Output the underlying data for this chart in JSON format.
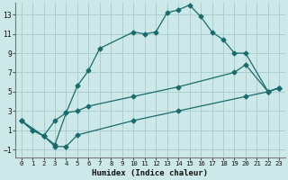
{
  "xlabel": "Humidex (Indice chaleur)",
  "xlim": [
    -0.5,
    23.5
  ],
  "ylim": [
    -1.8,
    14.2
  ],
  "yticks": [
    -1,
    1,
    3,
    5,
    7,
    9,
    11,
    13
  ],
  "xticks": [
    0,
    1,
    2,
    3,
    4,
    5,
    6,
    7,
    8,
    9,
    10,
    11,
    12,
    13,
    14,
    15,
    16,
    17,
    18,
    19,
    20,
    21,
    22,
    23
  ],
  "bg_color": "#cde8e8",
  "grid_color": "#aacece",
  "line_color": "#1a6b6b",
  "line1_x": [
    0,
    1,
    2,
    3,
    4,
    5,
    6,
    7,
    10,
    11,
    12,
    13,
    14,
    15,
    16,
    17,
    18,
    19,
    20,
    22,
    23
  ],
  "line1_y": [
    2,
    1,
    0.4,
    -0.5,
    2.8,
    5.6,
    7.2,
    9.5,
    11.2,
    11.0,
    11.2,
    13.2,
    13.5,
    14.0,
    12.8,
    11.2,
    10.4,
    9.0,
    9.0,
    5.0,
    5.4
  ],
  "line2_x": [
    0,
    1,
    2,
    3,
    4,
    5,
    6,
    10,
    14,
    19,
    20,
    22,
    23
  ],
  "line2_y": [
    2,
    1,
    0.4,
    2.0,
    2.8,
    3.0,
    3.5,
    4.5,
    5.5,
    7.0,
    7.8,
    5.0,
    5.4
  ],
  "line3_x": [
    0,
    2,
    3,
    4,
    5,
    10,
    14,
    20,
    22,
    23
  ],
  "line3_y": [
    2,
    0.4,
    -0.7,
    -0.7,
    0.5,
    2.0,
    3.0,
    4.5,
    5.0,
    5.4
  ]
}
